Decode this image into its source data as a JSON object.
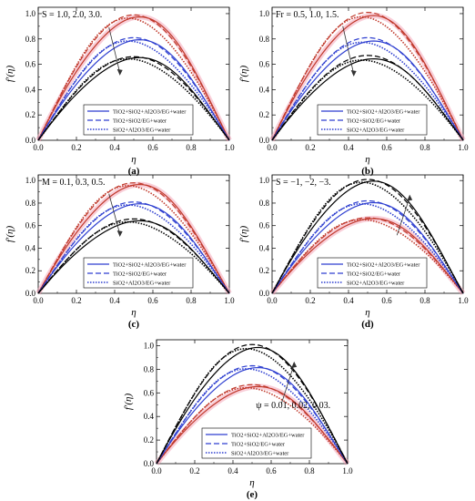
{
  "chart_data": [
    {
      "type": "line",
      "panel_label": "(a)",
      "xlabel": "η",
      "ylabel": "f′(η)",
      "xlim": [
        0,
        1
      ],
      "ylim": [
        0,
        1.05
      ],
      "xticks": [
        "0.0",
        "0.2",
        "0.4",
        "0.6",
        "0.8",
        "1.0"
      ],
      "yticks": [
        "0.0",
        "0.2",
        "0.4",
        "0.6",
        "0.8",
        "1.0"
      ],
      "annotation": "S = 1.0, 2.0, 3.0.",
      "arrow_direction": "down",
      "legend_placement": "bottom-center",
      "series": [
        {
          "name": "TiO2+SiO2+Al2O3/EG+water",
          "peaks": [
            0.97,
            0.79,
            0.65
          ]
        },
        {
          "name": "TiO2+SiO2/EG+water",
          "peaks": [
            0.99,
            0.81,
            0.66
          ]
        },
        {
          "name": "SiO2+Al2O3/EG+water",
          "peaks": [
            0.96,
            0.78,
            0.64
          ]
        }
      ]
    },
    {
      "type": "line",
      "panel_label": "(b)",
      "xlabel": "η",
      "ylabel": "f′(η)",
      "xlim": [
        0,
        1
      ],
      "ylim": [
        0,
        1.05
      ],
      "xticks": [
        "0.0",
        "0.2",
        "0.4",
        "0.6",
        "0.8",
        "1.0"
      ],
      "yticks": [
        "0.0",
        "0.2",
        "0.4",
        "0.6",
        "0.8",
        "1.0"
      ],
      "annotation": "Fr = 0.5, 1.0, 1.5.",
      "arrow_direction": "down",
      "legend_placement": "bottom-center",
      "series": [
        {
          "name": "TiO2+SiO2+Al2O3/EG+water",
          "peaks": [
            0.98,
            0.78,
            0.64
          ]
        },
        {
          "name": "TiO2+SiO2/EG+water",
          "peaks": [
            1.01,
            0.81,
            0.67
          ]
        },
        {
          "name": "SiO2+Al2O3/EG+water",
          "peaks": [
            0.97,
            0.77,
            0.63
          ]
        }
      ]
    },
    {
      "type": "line",
      "panel_label": "(c)",
      "xlabel": "η",
      "ylabel": "f′(η)",
      "xlim": [
        0,
        1
      ],
      "ylim": [
        0,
        1.05
      ],
      "xticks": [
        "0.0",
        "0.2",
        "0.4",
        "0.6",
        "0.8",
        "1.0"
      ],
      "yticks": [
        "0.0",
        "0.2",
        "0.4",
        "0.6",
        "0.8",
        "1.0"
      ],
      "annotation": "M = 0.1, 0.3, 0.5.",
      "arrow_direction": "down",
      "legend_placement": "bottom-center",
      "series": [
        {
          "name": "TiO2+SiO2+Al2O3/EG+water",
          "peaks": [
            0.96,
            0.79,
            0.64
          ]
        },
        {
          "name": "TiO2+SiO2/EG+water",
          "peaks": [
            0.98,
            0.81,
            0.66
          ]
        },
        {
          "name": "SiO2+Al2O3/EG+water",
          "peaks": [
            0.95,
            0.78,
            0.63
          ]
        }
      ]
    },
    {
      "type": "line",
      "panel_label": "(d)",
      "xlabel": "η",
      "ylabel": "f′(η)",
      "xlim": [
        0,
        1
      ],
      "ylim": [
        0,
        1.05
      ],
      "xticks": [
        "0.0",
        "0.2",
        "0.4",
        "0.6",
        "0.8",
        "1.0"
      ],
      "yticks": [
        "0.0",
        "0.2",
        "0.4",
        "0.6",
        "0.8",
        "1.0"
      ],
      "annotation": "S = −1, −2, −3.",
      "arrow_direction": "up",
      "legend_placement": "bottom-center",
      "series": [
        {
          "name": "TiO2+SiO2+Al2O3/EG+water",
          "peaks": [
            0.66,
            0.8,
            0.99
          ]
        },
        {
          "name": "TiO2+SiO2/EG+water",
          "peaks": [
            0.67,
            0.82,
            1.01
          ]
        },
        {
          "name": "SiO2+Al2O3/EG+water",
          "peaks": [
            0.65,
            0.79,
            0.98
          ]
        }
      ]
    },
    {
      "type": "line",
      "panel_label": "(e)",
      "xlabel": "η",
      "ylabel": "f′(η)",
      "xlim": [
        0,
        1
      ],
      "ylim": [
        0,
        1.05
      ],
      "xticks": [
        "0.0",
        "0.2",
        "0.4",
        "0.6",
        "0.8",
        "1.0"
      ],
      "yticks": [
        "0.0",
        "0.2",
        "0.4",
        "0.6",
        "0.8",
        "1.0"
      ],
      "annotation": "ψ = 0.01, 0.02, 0.03.",
      "arrow_direction": "up",
      "legend_placement": "bottom-center",
      "series": [
        {
          "name": "TiO2+SiO2+Al2O3/EG+water",
          "peaks": [
            0.65,
            0.81,
            0.98
          ]
        },
        {
          "name": "TiO2+SiO2/EG+water",
          "peaks": [
            0.67,
            0.83,
            1.01
          ]
        },
        {
          "name": "SiO2+Al2O3/EG+water",
          "peaks": [
            0.64,
            0.8,
            0.97
          ]
        }
      ]
    }
  ],
  "colors": {
    "curve_levels": [
      "#c0392b",
      "#2e3fd0",
      "#000000"
    ],
    "pink_halo": "#f4a7b9",
    "arrow": "#333333"
  }
}
